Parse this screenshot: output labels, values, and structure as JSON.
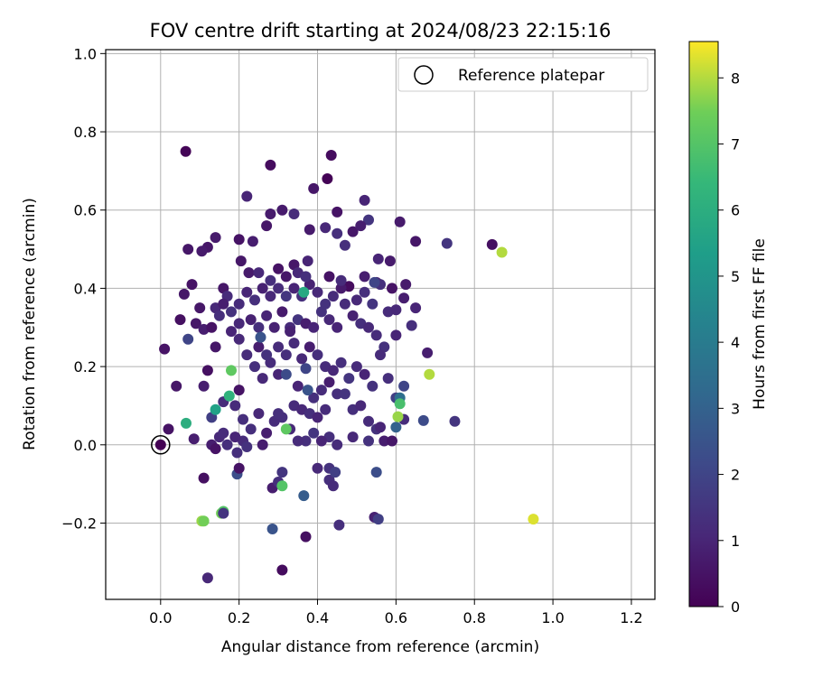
{
  "chart_data": {
    "type": "scatter",
    "title": "FOV centre drift starting at 2024/08/23 22:15:16",
    "xlabel": "Angular distance from reference (arcmin)",
    "ylabel": "Rotation from reference (arcmin)",
    "colorbar_label": "Hours from first FF file",
    "xlim": [
      -0.14,
      1.26
    ],
    "ylim": [
      -0.395,
      1.01
    ],
    "xticks": [
      0.0,
      0.2,
      0.4,
      0.6,
      0.8,
      1.0,
      1.2
    ],
    "xtick_labels": [
      "0.0",
      "0.2",
      "0.4",
      "0.6",
      "0.8",
      "1.0",
      "1.2"
    ],
    "yticks": [
      -0.2,
      0.0,
      0.2,
      0.4,
      0.6,
      0.8,
      1.0
    ],
    "ytick_labels": [
      "−0.2",
      "0.0",
      "0.2",
      "0.4",
      "0.6",
      "0.8",
      "1.0"
    ],
    "colorbar_range": [
      0,
      8.55
    ],
    "colorbar_ticks": [
      0,
      1,
      2,
      3,
      4,
      5,
      6,
      7,
      8
    ],
    "colorbar_tick_labels": [
      "0",
      "1",
      "2",
      "3",
      "4",
      "5",
      "6",
      "7",
      "8"
    ],
    "colormap": "viridis",
    "grid": true,
    "legend_position": "top-right",
    "legend_entries": [
      "Reference platepar"
    ],
    "reference_point": {
      "x": 0.0,
      "y": 0.0
    },
    "points": [
      [
        0.064,
        0.75,
        0.1
      ],
      [
        0.28,
        0.715,
        0.3
      ],
      [
        0.425,
        0.68,
        0.05
      ],
      [
        0.435,
        0.74,
        0.3
      ],
      [
        0.22,
        0.635,
        1.0
      ],
      [
        0.39,
        0.655,
        0.6
      ],
      [
        0.52,
        0.625,
        1.0
      ],
      [
        0.34,
        0.59,
        1.2
      ],
      [
        0.31,
        0.6,
        0.7
      ],
      [
        0.45,
        0.595,
        0.5
      ],
      [
        0.28,
        0.59,
        0.7
      ],
      [
        0.53,
        0.575,
        1.5
      ],
      [
        0.61,
        0.57,
        0.7
      ],
      [
        0.65,
        0.52,
        0.6
      ],
      [
        0.73,
        0.515,
        1.5
      ],
      [
        0.845,
        0.512,
        0.4
      ],
      [
        0.87,
        0.492,
        8.0
      ],
      [
        0.07,
        0.5,
        0.6
      ],
      [
        0.12,
        0.505,
        0.6
      ],
      [
        0.14,
        0.53,
        0.7
      ],
      [
        0.105,
        0.495,
        0.7
      ],
      [
        0.2,
        0.525,
        0.5
      ],
      [
        0.235,
        0.52,
        0.8
      ],
      [
        0.27,
        0.56,
        0.6
      ],
      [
        0.38,
        0.55,
        0.7
      ],
      [
        0.42,
        0.555,
        1.1
      ],
      [
        0.45,
        0.54,
        1.3
      ],
      [
        0.49,
        0.545,
        0.6
      ],
      [
        0.47,
        0.51,
        1.3
      ],
      [
        0.51,
        0.56,
        0.8
      ],
      [
        0.555,
        0.475,
        1.0
      ],
      [
        0.585,
        0.47,
        0.7
      ],
      [
        0.205,
        0.47,
        0.6
      ],
      [
        0.225,
        0.44,
        0.7
      ],
      [
        0.3,
        0.45,
        0.5
      ],
      [
        0.34,
        0.46,
        0.6
      ],
      [
        0.375,
        0.47,
        1.0
      ],
      [
        0.43,
        0.43,
        0.5
      ],
      [
        0.48,
        0.405,
        0.3
      ],
      [
        0.55,
        0.415,
        0.9
      ],
      [
        0.625,
        0.41,
        0.7
      ],
      [
        0.65,
        0.35,
        1.0
      ],
      [
        0.62,
        0.375,
        0.8
      ],
      [
        0.64,
        0.305,
        1.3
      ],
      [
        0.59,
        0.4,
        0.5
      ],
      [
        0.08,
        0.41,
        0.5
      ],
      [
        0.06,
        0.385,
        0.6
      ],
      [
        0.1,
        0.35,
        0.6
      ],
      [
        0.05,
        0.32,
        0.4
      ],
      [
        0.09,
        0.31,
        0.6
      ],
      [
        0.11,
        0.295,
        0.8
      ],
      [
        0.14,
        0.35,
        1.1
      ],
      [
        0.16,
        0.4,
        0.6
      ],
      [
        0.17,
        0.38,
        1.2
      ],
      [
        0.15,
        0.33,
        1.3
      ],
      [
        0.13,
        0.3,
        0.5
      ],
      [
        0.18,
        0.29,
        1.0
      ],
      [
        0.2,
        0.31,
        1.1
      ],
      [
        0.23,
        0.32,
        0.9
      ],
      [
        0.25,
        0.3,
        1.3
      ],
      [
        0.27,
        0.33,
        1.0
      ],
      [
        0.29,
        0.3,
        0.9
      ],
      [
        0.31,
        0.34,
        0.7
      ],
      [
        0.33,
        0.3,
        1.2
      ],
      [
        0.35,
        0.32,
        1.5
      ],
      [
        0.37,
        0.31,
        0.8
      ],
      [
        0.39,
        0.3,
        1.0
      ],
      [
        0.41,
        0.34,
        1.4
      ],
      [
        0.43,
        0.32,
        1.1
      ],
      [
        0.45,
        0.3,
        1.0
      ],
      [
        0.47,
        0.36,
        1.2
      ],
      [
        0.49,
        0.33,
        0.9
      ],
      [
        0.51,
        0.31,
        1.3
      ],
      [
        0.53,
        0.3,
        1.1
      ],
      [
        0.55,
        0.28,
        1.2
      ],
      [
        0.57,
        0.25,
        1.4
      ],
      [
        0.6,
        0.28,
        1.0
      ],
      [
        0.58,
        0.34,
        1.2
      ],
      [
        0.54,
        0.36,
        1.5
      ],
      [
        0.52,
        0.39,
        1.3
      ],
      [
        0.5,
        0.37,
        1.1
      ],
      [
        0.46,
        0.4,
        0.7
      ],
      [
        0.44,
        0.38,
        1.2
      ],
      [
        0.42,
        0.36,
        1.4
      ],
      [
        0.4,
        0.39,
        1.1
      ],
      [
        0.38,
        0.41,
        0.9
      ],
      [
        0.36,
        0.38,
        1.3
      ],
      [
        0.34,
        0.4,
        1.0
      ],
      [
        0.32,
        0.38,
        1.5
      ],
      [
        0.3,
        0.4,
        1.2
      ],
      [
        0.28,
        0.38,
        1.1
      ],
      [
        0.26,
        0.4,
        0.9
      ],
      [
        0.24,
        0.37,
        1.3
      ],
      [
        0.22,
        0.39,
        1.0
      ],
      [
        0.2,
        0.36,
        1.2
      ],
      [
        0.18,
        0.34,
        1.4
      ],
      [
        0.16,
        0.36,
        0.8
      ],
      [
        0.25,
        0.44,
        1.1
      ],
      [
        0.28,
        0.42,
        1.3
      ],
      [
        0.32,
        0.43,
        0.6
      ],
      [
        0.35,
        0.44,
        1.1
      ],
      [
        0.37,
        0.43,
        1.3
      ],
      [
        0.46,
        0.42,
        1.2
      ],
      [
        0.52,
        0.43,
        0.8
      ],
      [
        0.56,
        0.41,
        1.3
      ],
      [
        0.6,
        0.345,
        1.1
      ],
      [
        0.07,
        0.27,
        2.0
      ],
      [
        0.01,
        0.245,
        0.5
      ],
      [
        0.02,
        0.04,
        0.5
      ],
      [
        0.04,
        0.15,
        0.6
      ],
      [
        0.065,
        0.055,
        6.0
      ],
      [
        0.085,
        0.015,
        0.8
      ],
      [
        0.11,
        0.15,
        0.8
      ],
      [
        0.12,
        0.19,
        0.4
      ],
      [
        0.14,
        0.25,
        0.6
      ],
      [
        0.13,
        0.07,
        1.8
      ],
      [
        0.14,
        0.09,
        5.5
      ],
      [
        0.16,
        0.11,
        1.2
      ],
      [
        0.175,
        0.125,
        6.2
      ],
      [
        0.18,
        0.19,
        7.2
      ],
      [
        0.2,
        0.14,
        0.5
      ],
      [
        0.19,
        0.1,
        1.2
      ],
      [
        0.21,
        0.065,
        1.3
      ],
      [
        0.2,
        0.27,
        1.1
      ],
      [
        0.22,
        0.23,
        1.2
      ],
      [
        0.24,
        0.2,
        1.3
      ],
      [
        0.25,
        0.25,
        0.8
      ],
      [
        0.26,
        0.17,
        1.1
      ],
      [
        0.28,
        0.21,
        1.2
      ],
      [
        0.3,
        0.18,
        1.0
      ],
      [
        0.32,
        0.23,
        1.3
      ],
      [
        0.34,
        0.26,
        1.2
      ],
      [
        0.36,
        0.22,
        1.1
      ],
      [
        0.38,
        0.25,
        0.8
      ],
      [
        0.4,
        0.23,
        1.3
      ],
      [
        0.42,
        0.2,
        1.2
      ],
      [
        0.44,
        0.19,
        1.1
      ],
      [
        0.46,
        0.21,
        1.3
      ],
      [
        0.48,
        0.17,
        1.5
      ],
      [
        0.5,
        0.2,
        1.2
      ],
      [
        0.52,
        0.18,
        1.0
      ],
      [
        0.54,
        0.15,
        1.4
      ],
      [
        0.56,
        0.23,
        1.2
      ],
      [
        0.58,
        0.17,
        1.3
      ],
      [
        0.6,
        0.12,
        1.8
      ],
      [
        0.62,
        0.15,
        2.0
      ],
      [
        0.61,
        0.12,
        3.5
      ],
      [
        0.61,
        0.105,
        6.8
      ],
      [
        0.685,
        0.18,
        8.0
      ],
      [
        0.68,
        0.235,
        0.8
      ],
      [
        0.255,
        0.275,
        2.5
      ],
      [
        0.27,
        0.23,
        1.4
      ],
      [
        0.3,
        0.25,
        1.2
      ],
      [
        0.32,
        0.18,
        2.2
      ],
      [
        0.35,
        0.15,
        1.0
      ],
      [
        0.37,
        0.195,
        2.0
      ],
      [
        0.39,
        0.12,
        1.3
      ],
      [
        0.41,
        0.14,
        1.2
      ],
      [
        0.43,
        0.16,
        0.8
      ],
      [
        0.45,
        0.13,
        1.3
      ],
      [
        0.47,
        0.13,
        1.5
      ],
      [
        0.49,
        0.09,
        1.3
      ],
      [
        0.51,
        0.1,
        1.1
      ],
      [
        0.53,
        0.06,
        1.2
      ],
      [
        0.55,
        0.04,
        1.4
      ],
      [
        0.57,
        0.01,
        0.8
      ],
      [
        0.59,
        0.01,
        0.6
      ],
      [
        0.62,
        0.065,
        1.2
      ],
      [
        0.67,
        0.062,
        2.2
      ],
      [
        0.75,
        0.06,
        1.5
      ],
      [
        0.6,
        0.045,
        3.0
      ],
      [
        0.605,
        0.072,
        7.8
      ],
      [
        0.56,
        0.045,
        1.0
      ],
      [
        0.53,
        0.01,
        1.4
      ],
      [
        0.49,
        0.02,
        1.1
      ],
      [
        0.45,
        0.0,
        1.2
      ],
      [
        0.43,
        0.02,
        1.3
      ],
      [
        0.41,
        0.01,
        1.0
      ],
      [
        0.39,
        0.03,
        1.5
      ],
      [
        0.37,
        0.01,
        1.3
      ],
      [
        0.35,
        0.01,
        1.2
      ],
      [
        0.33,
        0.04,
        1.1
      ],
      [
        0.31,
        0.07,
        1.3
      ],
      [
        0.29,
        0.06,
        1.2
      ],
      [
        0.27,
        0.03,
        0.8
      ],
      [
        0.25,
        0.08,
        1.1
      ],
      [
        0.23,
        0.04,
        1.3
      ],
      [
        0.21,
        0.01,
        1.2
      ],
      [
        0.19,
        0.02,
        1.0
      ],
      [
        0.17,
        0.0,
        1.3
      ],
      [
        0.15,
        0.02,
        1.1
      ],
      [
        0.13,
        0.0,
        0.8
      ],
      [
        0.14,
        -0.01,
        0.5
      ],
      [
        0.16,
        0.03,
        1.2
      ],
      [
        0.22,
        -0.005,
        1.4
      ],
      [
        0.26,
        0.0,
        0.8
      ],
      [
        0.3,
        0.08,
        1.3
      ],
      [
        0.32,
        0.04,
        7.2
      ],
      [
        0.34,
        0.1,
        1.2
      ],
      [
        0.36,
        0.09,
        1.1
      ],
      [
        0.38,
        0.08,
        1.3
      ],
      [
        0.4,
        0.07,
        1.0
      ],
      [
        0.42,
        0.09,
        1.2
      ],
      [
        0.11,
        -0.085,
        0.4
      ],
      [
        0.195,
        -0.075,
        2.3
      ],
      [
        0.195,
        -0.02,
        1.3
      ],
      [
        0.2,
        -0.06,
        0.5
      ],
      [
        0.285,
        -0.11,
        0.8
      ],
      [
        0.3,
        -0.095,
        1.3
      ],
      [
        0.31,
        -0.07,
        1.5
      ],
      [
        0.31,
        -0.105,
        7.0
      ],
      [
        0.365,
        -0.13,
        2.8
      ],
      [
        0.37,
        -0.235,
        0.4
      ],
      [
        0.4,
        -0.06,
        1.1
      ],
      [
        0.43,
        -0.09,
        1.3
      ],
      [
        0.44,
        -0.105,
        1.2
      ],
      [
        0.43,
        -0.06,
        1.4
      ],
      [
        0.445,
        -0.07,
        1.8
      ],
      [
        0.455,
        -0.205,
        1.3
      ],
      [
        0.545,
        -0.185,
        0.9
      ],
      [
        0.555,
        -0.19,
        1.8
      ],
      [
        0.55,
        -0.07,
        2.3
      ],
      [
        0.285,
        -0.215,
        2.5
      ],
      [
        0.31,
        -0.32,
        0.3
      ],
      [
        0.12,
        -0.34,
        1.1
      ],
      [
        0.105,
        -0.195,
        7.8
      ],
      [
        0.11,
        -0.195,
        7.5
      ],
      [
        0.155,
        -0.175,
        7.5
      ],
      [
        0.16,
        -0.17,
        7.0
      ],
      [
        0.16,
        -0.175,
        1.5
      ],
      [
        0.95,
        -0.19,
        8.3
      ],
      [
        0.365,
        0.39,
        5.8
      ],
      [
        0.545,
        0.415,
        2.0
      ],
      [
        0.375,
        0.14,
        2.5
      ],
      [
        0.33,
        0.29,
        0.9
      ]
    ]
  },
  "legend": {
    "label": "Reference platepar"
  }
}
